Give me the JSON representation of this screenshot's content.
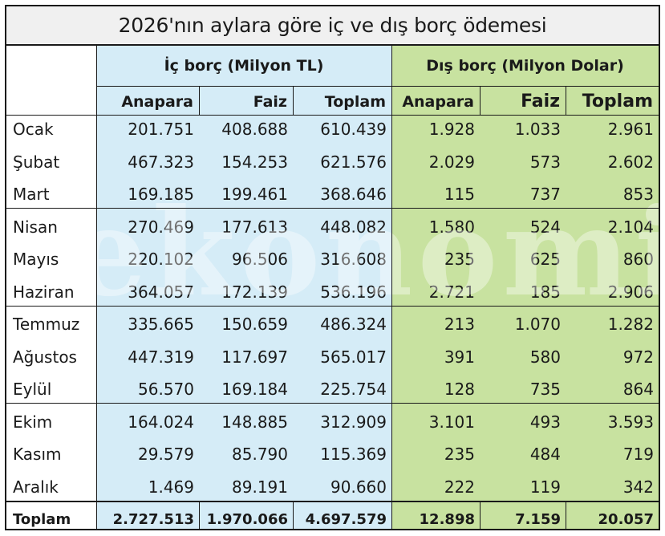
{
  "title": "2026'nın aylara göre iç ve dış borç ödemesi",
  "groups": {
    "ic": "İç borç (Milyon TL)",
    "dis": "Dış borç (Milyon Dolar)"
  },
  "columns": {
    "ic_anapara": "Anapara",
    "ic_faiz": "Faiz",
    "ic_toplam": "Toplam",
    "dis_anapara": "Anapara",
    "dis_faiz": "Faiz",
    "dis_toplam": "Toplam"
  },
  "rows": [
    {
      "month": "Ocak",
      "ic_anapara": "201.751",
      "ic_faiz": "408.688",
      "ic_toplam": "610.439",
      "dis_anapara": "1.928",
      "dis_faiz": "1.033",
      "dis_toplam": "2.961"
    },
    {
      "month": "Şubat",
      "ic_anapara": "467.323",
      "ic_faiz": "154.253",
      "ic_toplam": "621.576",
      "dis_anapara": "2.029",
      "dis_faiz": "573",
      "dis_toplam": "2.602"
    },
    {
      "month": "Mart",
      "ic_anapara": "169.185",
      "ic_faiz": "199.461",
      "ic_toplam": "368.646",
      "dis_anapara": "115",
      "dis_faiz": "737",
      "dis_toplam": "853"
    },
    {
      "month": "Nisan",
      "ic_anapara": "270.469",
      "ic_faiz": "177.613",
      "ic_toplam": "448.082",
      "dis_anapara": "1.580",
      "dis_faiz": "524",
      "dis_toplam": "2.104"
    },
    {
      "month": "Mayıs",
      "ic_anapara": "220.102",
      "ic_faiz": "96.506",
      "ic_toplam": "316.608",
      "dis_anapara": "235",
      "dis_faiz": "625",
      "dis_toplam": "860"
    },
    {
      "month": "Haziran",
      "ic_anapara": "364.057",
      "ic_faiz": "172.139",
      "ic_toplam": "536.196",
      "dis_anapara": "2.721",
      "dis_faiz": "185",
      "dis_toplam": "2.906"
    },
    {
      "month": "Temmuz",
      "ic_anapara": "335.665",
      "ic_faiz": "150.659",
      "ic_toplam": "486.324",
      "dis_anapara": "213",
      "dis_faiz": "1.070",
      "dis_toplam": "1.282"
    },
    {
      "month": "Ağustos",
      "ic_anapara": "447.319",
      "ic_faiz": "117.697",
      "ic_toplam": "565.017",
      "dis_anapara": "391",
      "dis_faiz": "580",
      "dis_toplam": "972"
    },
    {
      "month": "Eylül",
      "ic_anapara": "56.570",
      "ic_faiz": "169.184",
      "ic_toplam": "225.754",
      "dis_anapara": "128",
      "dis_faiz": "735",
      "dis_toplam": "864"
    },
    {
      "month": "Ekim",
      "ic_anapara": "164.024",
      "ic_faiz": "148.885",
      "ic_toplam": "312.909",
      "dis_anapara": "3.101",
      "dis_faiz": "493",
      "dis_toplam": "3.593"
    },
    {
      "month": "Kasım",
      "ic_anapara": "29.579",
      "ic_faiz": "85.790",
      "ic_toplam": "115.369",
      "dis_anapara": "235",
      "dis_faiz": "484",
      "dis_toplam": "719"
    },
    {
      "month": "Aralık",
      "ic_anapara": "1.469",
      "ic_faiz": "89.191",
      "ic_toplam": "90.660",
      "dis_anapara": "222",
      "dis_faiz": "119",
      "dis_toplam": "342"
    }
  ],
  "total": {
    "label": "Toplam",
    "ic_anapara": "2.727.513",
    "ic_faiz": "1.970.066",
    "ic_toplam": "4.697.579",
    "dis_anapara": "12.898",
    "dis_faiz": "7.159",
    "dis_toplam": "20.057"
  },
  "watermark": "ekonomi",
  "colors": {
    "ic_band": "#d5ecf7",
    "dis_band": "#c8e2a0",
    "title_bg": "#f0f0f0",
    "rule": "#1a1a1a"
  }
}
